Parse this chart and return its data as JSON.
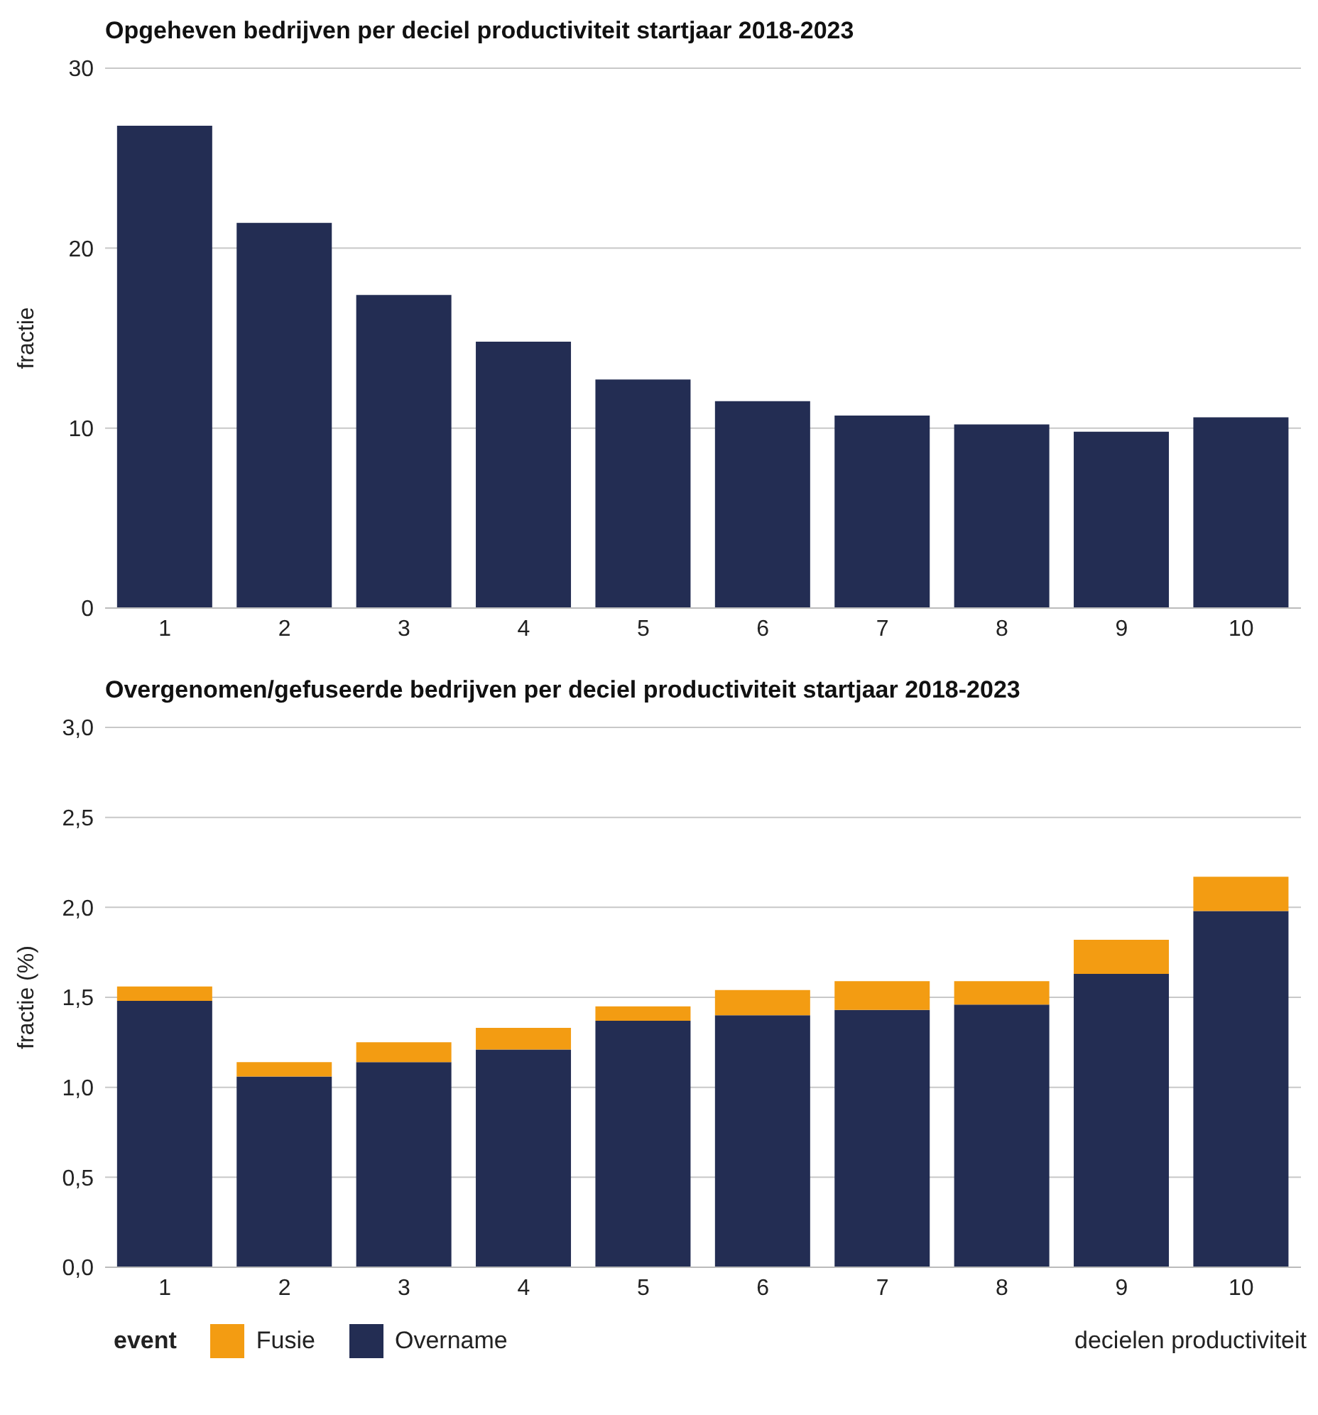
{
  "chart_data": [
    {
      "type": "bar",
      "title": "Opgeheven bedrijven per deciel productiviteit startjaar 2018-2023",
      "ylabel": "fractie",
      "categories": [
        "1",
        "2",
        "3",
        "4",
        "5",
        "6",
        "7",
        "8",
        "9",
        "10"
      ],
      "series": [
        {
          "color": "#232d53",
          "values": [
            26.8,
            21.4,
            17.4,
            14.8,
            12.7,
            11.5,
            10.7,
            10.2,
            9.8,
            10.6
          ]
        }
      ],
      "ylim": [
        0,
        30
      ],
      "yticks": [
        0,
        10,
        20,
        30
      ],
      "grid": "y",
      "legend": false
    },
    {
      "type": "bar",
      "title": "Overgenomen/gefuseerde bedrijven per deciel productiviteit startjaar 2018-2023",
      "ylabel": "fractie (%)",
      "xlabel": "decielen productiviteit",
      "legend_title": "event",
      "categories": [
        "1",
        "2",
        "3",
        "4",
        "5",
        "6",
        "7",
        "8",
        "9",
        "10"
      ],
      "stacked": true,
      "series": [
        {
          "name": "Overname",
          "color": "#232d53",
          "values": [
            1.48,
            1.06,
            1.14,
            1.21,
            1.37,
            1.4,
            1.43,
            1.46,
            1.63,
            1.98
          ]
        },
        {
          "name": "Fusie",
          "color": "#f39c12",
          "values": [
            0.08,
            0.08,
            0.11,
            0.12,
            0.08,
            0.14,
            0.16,
            0.13,
            0.19,
            0.19
          ]
        }
      ],
      "ylim": [
        0,
        3
      ],
      "yticks": [
        {
          "value": 0,
          "label": "0,0"
        },
        {
          "value": 0.5,
          "label": "0,5"
        },
        {
          "value": 1,
          "label": "1,0"
        },
        {
          "value": 1.5,
          "label": "1,5"
        },
        {
          "value": 2,
          "label": "2,0"
        },
        {
          "value": 2.5,
          "label": "2,5"
        },
        {
          "value": 3,
          "label": "3,0"
        }
      ],
      "grid": "y",
      "legend": "bottom left"
    }
  ]
}
